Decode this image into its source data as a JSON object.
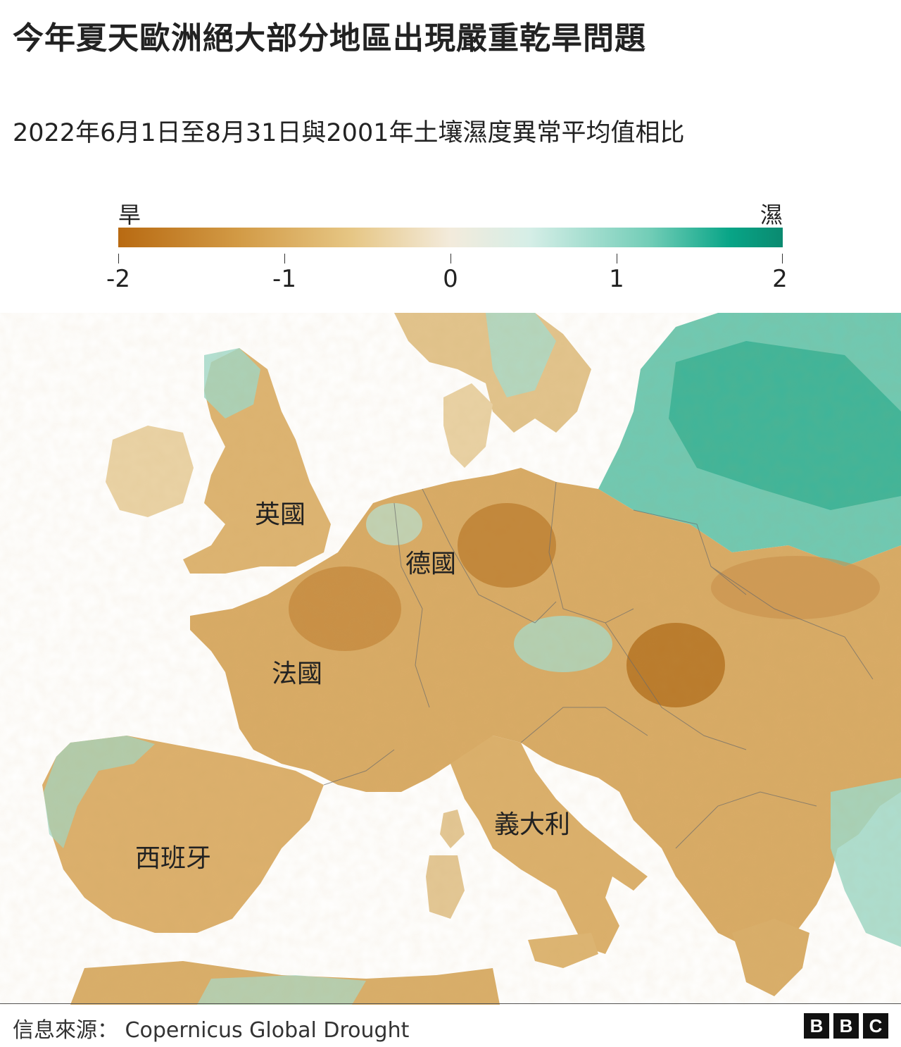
{
  "title": "今年夏天歐洲絕大部分地區出現嚴重乾旱問題",
  "subtitle": "2022年6月1日至8月31日與2001年土壤濕度異常平均值相比",
  "legend": {
    "dry_label": "旱",
    "wet_label": "濕",
    "ticks": [
      "-2",
      "-1",
      "0",
      "1",
      "2"
    ],
    "colors": {
      "dry": "#b86a12",
      "neutral": "#f3ebdc",
      "wet": "#0a8a70"
    }
  },
  "map": {
    "labels": {
      "uk": "英國",
      "germany": "德國",
      "france": "法國",
      "spain": "西班牙",
      "italy": "義大利"
    },
    "colors": {
      "sea": "#ffffff",
      "dry_land": "#d8ab66",
      "very_dry": "#b9782a",
      "wet_land": "#6fc9b3",
      "very_wet": "#2fae92",
      "border": "#6b6b6b"
    }
  },
  "footer": {
    "source": "信息來源： Copernicus Global Drought",
    "logo_letters": [
      "B",
      "B",
      "C"
    ]
  }
}
